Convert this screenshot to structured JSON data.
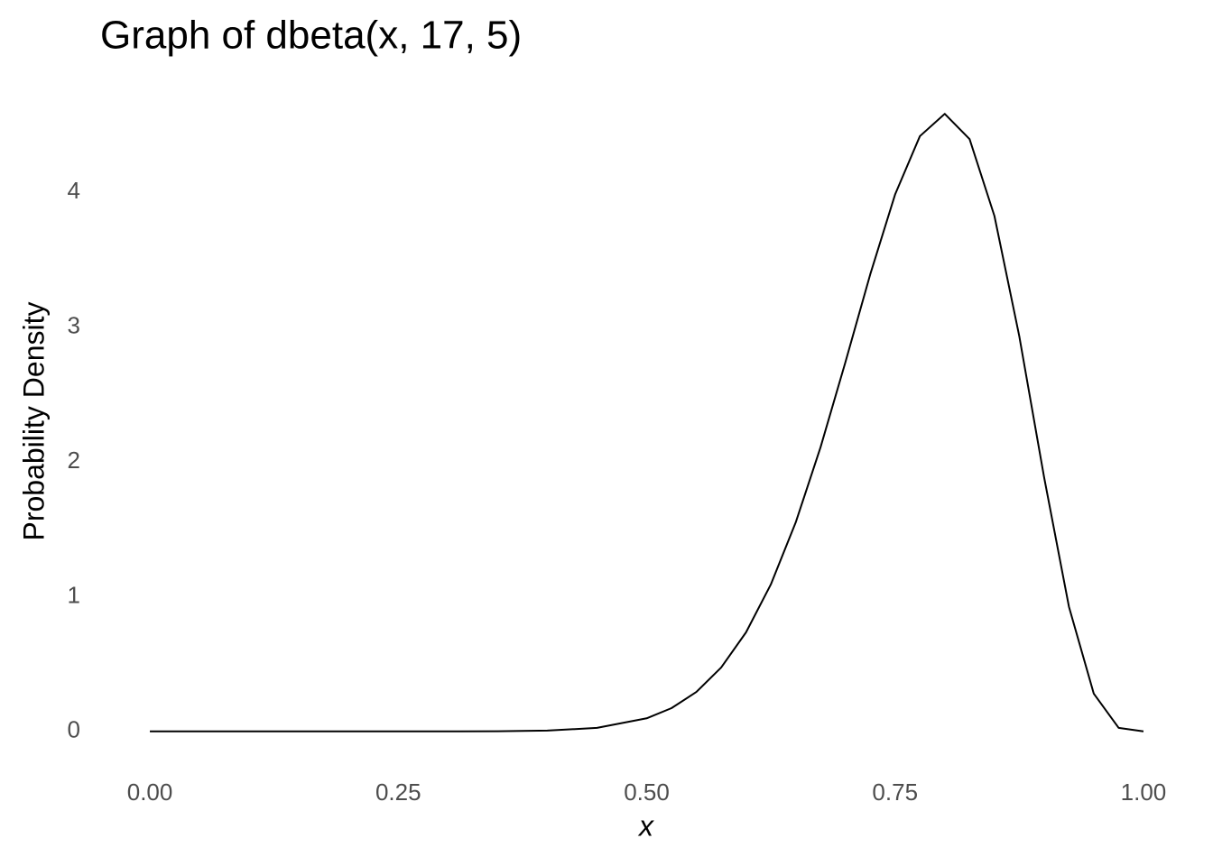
{
  "chart_data": {
    "type": "line",
    "title": "Graph of dbeta(x, 17, 5)",
    "x_label": "x",
    "y_label": "Probability Density",
    "x": [
      0,
      0.1,
      0.2,
      0.3,
      0.35,
      0.4,
      0.45,
      0.5,
      0.525,
      0.55,
      0.575,
      0.6,
      0.625,
      0.65,
      0.675,
      0.7,
      0.725,
      0.75,
      0.775,
      0.8,
      0.825,
      0.85,
      0.875,
      0.9,
      0.925,
      0.95,
      0.975,
      1
    ],
    "series": [
      {
        "color": "#000000",
        "values": [
          0,
          0,
          0,
          0.0001,
          0.0009,
          0.0057,
          0.0263,
          0.097,
          0.1725,
          0.2925,
          0.474,
          0.7348,
          1.0907,
          1.5502,
          2.1082,
          2.7388,
          3.3905,
          3.9834,
          4.4165,
          4.582,
          4.3947,
          3.8246,
          2.9328,
          1.8853,
          0.9248,
          0.2799,
          0.0265,
          0
        ]
      }
    ],
    "xlim": [
      -0.05,
      1.05
    ],
    "ylim": [
      -0.229,
      4.811
    ],
    "xticks": [
      {
        "value": 0,
        "label": "0.00"
      },
      0.25,
      {
        "value": 0.5,
        "label": "0.50"
      },
      0.75,
      {
        "value": 1,
        "label": "1.00"
      }
    ],
    "yticks": [
      0,
      1,
      2,
      3,
      4
    ],
    "grid": false
  }
}
